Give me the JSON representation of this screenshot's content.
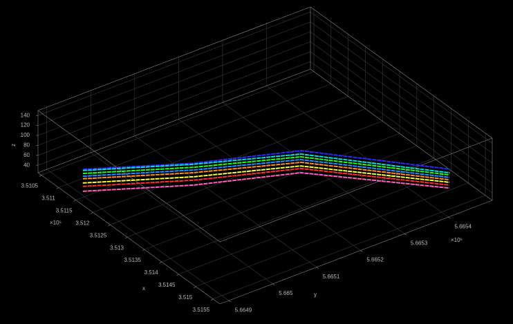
{
  "chart_data": {
    "type": "line3d",
    "background": "#000000",
    "grid": true,
    "xlabel": "x",
    "ylabel": "y",
    "zlabel": "z",
    "x_exponent": "×10⁵",
    "y_exponent": "×10⁶",
    "xlim": [
      351040,
      351570
    ],
    "ylim": [
      5664880,
      5665500
    ],
    "zlim": [
      25,
      150
    ],
    "xticks": [
      {
        "value": 351050,
        "label": "3.5105"
      },
      {
        "value": 351100,
        "label": "3.511"
      },
      {
        "value": 351150,
        "label": "3.5115"
      },
      {
        "value": 351200,
        "label": "3.512"
      },
      {
        "value": 351250,
        "label": "3.5125"
      },
      {
        "value": 351300,
        "label": "3.513"
      },
      {
        "value": 351350,
        "label": "3.5135"
      },
      {
        "value": 351400,
        "label": "3.514"
      },
      {
        "value": 351450,
        "label": "3.5145"
      },
      {
        "value": 351500,
        "label": "3.515"
      },
      {
        "value": 351550,
        "label": "3.5155"
      }
    ],
    "yticks": [
      {
        "value": 5664900,
        "label": "5.6649"
      },
      {
        "value": 5665000,
        "label": "5.665"
      },
      {
        "value": 5665100,
        "label": "5.6651"
      },
      {
        "value": 5665200,
        "label": "5.6652"
      },
      {
        "value": 5665300,
        "label": "5.6653"
      },
      {
        "value": 5665400,
        "label": "5.6654"
      }
    ],
    "zticks": [
      40,
      60,
      80,
      100,
      120,
      140
    ],
    "series": [
      {
        "color": "#2a2aff",
        "x": [
          351096,
          351191,
          351266,
          351464
        ],
        "y": [
          5664939,
          5665116,
          5665302,
          5665485
        ],
        "z": [
          40,
          40,
          40,
          40
        ]
      },
      {
        "color": "#00e0e0",
        "x": [
          351099,
          351194,
          351275,
          351474
        ],
        "y": [
          5664936,
          5665114,
          5665295,
          5665478
        ],
        "z": [
          40,
          40,
          40,
          40
        ]
      },
      {
        "color": "#22ff22",
        "x": [
          351107,
          351202,
          351282,
          351479
        ],
        "y": [
          5664930,
          5665108,
          5665289,
          5665473
        ],
        "z": [
          40,
          40,
          40,
          40
        ]
      },
      {
        "color": "#2090ff",
        "x": [
          351114,
          351209,
          351289,
          351486
        ],
        "y": [
          5664924,
          5665102,
          5665283,
          5665468
        ],
        "z": [
          40,
          40,
          40,
          40
        ]
      },
      {
        "color": "#ff9020",
        "x": [
          351121,
          351216,
          351297,
          351492
        ],
        "y": [
          5664919,
          5665096,
          5665278,
          5665463
        ],
        "z": [
          40,
          40,
          40,
          40
        ]
      },
      {
        "color": "#ffff40",
        "x": [
          351132,
          351227,
          351306,
          351499
        ],
        "y": [
          5664910,
          5665088,
          5665270,
          5665458
        ],
        "z": [
          40,
          40,
          40,
          40
        ]
      },
      {
        "color": "#ff3030",
        "x": [
          351141,
          351236,
          351313,
          351506
        ],
        "y": [
          5664903,
          5665081,
          5665265,
          5665452
        ],
        "z": [
          40,
          40,
          40,
          40
        ]
      },
      {
        "color": "#ff60c0",
        "x": [
          351154,
          351249,
          351324,
          351514
        ],
        "y": [
          5664893,
          5665071,
          5665256,
          5665446
        ],
        "z": [
          40,
          40,
          40,
          40
        ]
      }
    ]
  }
}
